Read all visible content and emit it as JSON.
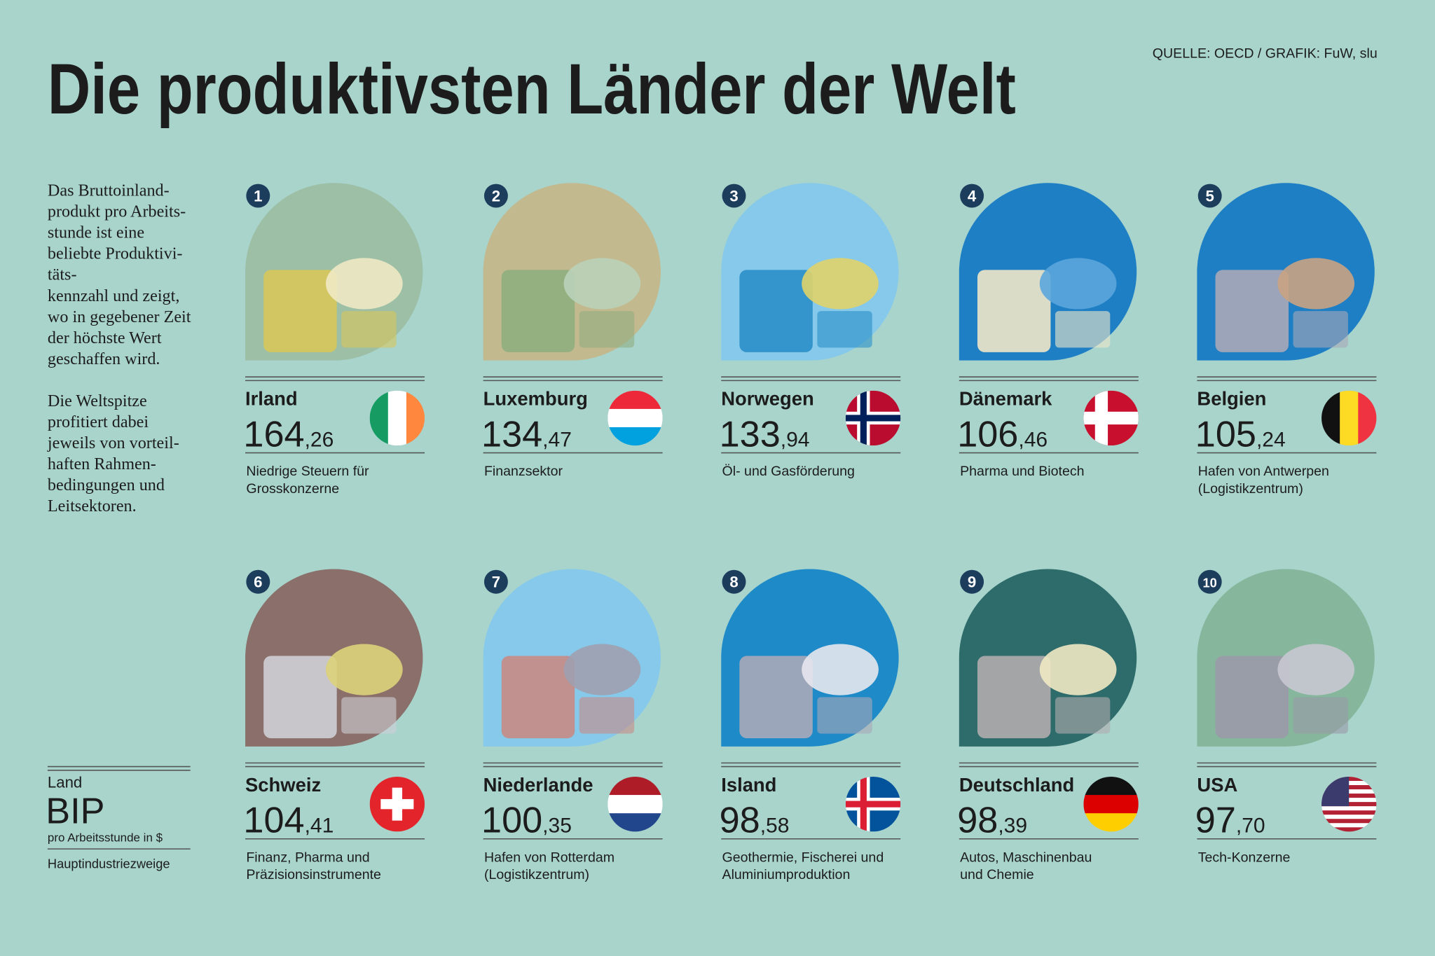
{
  "header": {
    "title": "Die produktivsten Länder der Welt",
    "source": "QUELLE: OECD / GRAFIK: FuW, slu"
  },
  "intro": {
    "paragraphs": [
      [
        "Das Bruttoinland-",
        "produkt pro Arbeits-",
        "stunde ist eine",
        "beliebte Produktivi-",
        "täts-",
        "kennzahl und zeigt,",
        "wo in gegebener Zeit",
        "der höchste Wert",
        "geschaffen wird."
      ],
      [
        "Die Weltspitze",
        "profitiert dabei",
        "jeweils von vorteil-",
        "haften Rahmen-",
        "bedingungen und",
        "Leitsektoren."
      ]
    ]
  },
  "legend": {
    "country": "Land",
    "bip": "BIP",
    "unit": "pro Arbeitsstunde in $",
    "industries": "Hauptindustriezweige"
  },
  "countries": [
    {
      "rank": 1,
      "name": "Irland",
      "bip_int": "164",
      "bip_dec": ",26",
      "industries": [
        "Niedrige Steuern für",
        "Grosskonzerne"
      ]
    },
    {
      "rank": 2,
      "name": "Luxemburg",
      "bip_int": "134",
      "bip_dec": ",47",
      "industries": [
        "Finanzsektor"
      ]
    },
    {
      "rank": 3,
      "name": "Norwegen",
      "bip_int": "133",
      "bip_dec": ",94",
      "industries": [
        "Öl- und Gasförderung"
      ]
    },
    {
      "rank": 4,
      "name": "Dänemark",
      "bip_int": "106",
      "bip_dec": ",46",
      "industries": [
        "Pharma und Biotech"
      ]
    },
    {
      "rank": 5,
      "name": "Belgien",
      "bip_int": "105",
      "bip_dec": ",24",
      "industries": [
        "Hafen von Antwerpen",
        "(Logistikzentrum)"
      ]
    },
    {
      "rank": 6,
      "name": "Schweiz",
      "bip_int": "104",
      "bip_dec": ",41",
      "industries": [
        "Finanz, Pharma und",
        "Präzisionsinstrumente"
      ]
    },
    {
      "rank": 7,
      "name": "Niederlande",
      "bip_int": "100",
      "bip_dec": ",35",
      "industries": [
        "Hafen von Rotterdam",
        "(Logistikzentrum)"
      ]
    },
    {
      "rank": 8,
      "name": "Island",
      "bip_int": "98",
      "bip_dec": ",58",
      "industries": [
        "Geothermie, Fischerei und",
        "Aluminiumproduktion"
      ]
    },
    {
      "rank": 9,
      "name": "Deutschland",
      "bip_int": "98",
      "bip_dec": ",39",
      "industries": [
        "Autos, Maschinenbau",
        "und Chemie"
      ]
    },
    {
      "rank": 10,
      "name": "USA",
      "bip_int": "97",
      "bip_dec": ",70",
      "industries": [
        "Tech-Konzerne"
      ]
    }
  ]
}
